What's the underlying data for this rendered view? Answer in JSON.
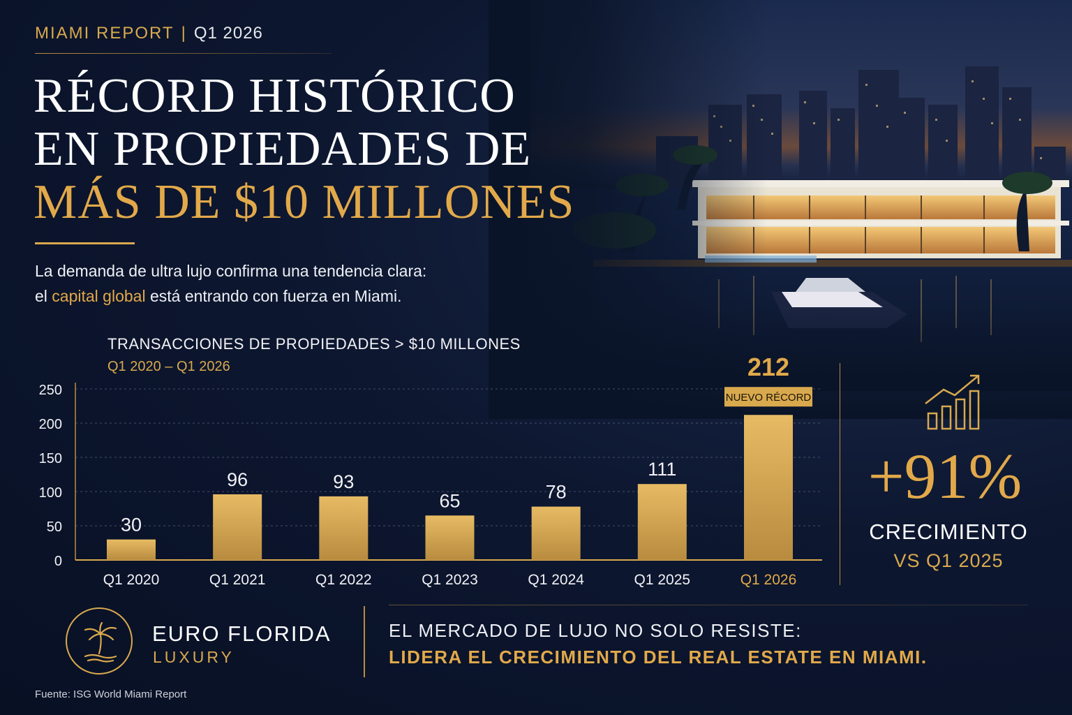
{
  "header": {
    "report_label": "MIAMI REPORT",
    "separator": "|",
    "quarter": "Q1 2026"
  },
  "headline": {
    "line1": "RÉCORD HISTÓRICO",
    "line2": "EN PROPIEDADES DE",
    "line3": "MÁS DE $10 MILLONES"
  },
  "intro": {
    "line1": "La demanda de ultra lujo confirma una tendencia clara:",
    "line2_pre": "el ",
    "line2_highlight": "capital global",
    "line2_post": " está entrando con fuerza en Miami."
  },
  "chart_data": {
    "type": "bar",
    "title": "TRANSACCIONES DE PROPIEDADES > $10 MILLONES",
    "subtitle": "Q1 2020 – Q1 2026",
    "categories": [
      "Q1 2020",
      "Q1 2021",
      "Q1 2022",
      "Q1 2023",
      "Q1 2024",
      "Q1 2025",
      "Q1 2026"
    ],
    "values": [
      30,
      96,
      93,
      65,
      78,
      111,
      212
    ],
    "ylim": [
      0,
      250
    ],
    "yticks": [
      0,
      50,
      100,
      150,
      200,
      250
    ],
    "grid": true,
    "highlight_index": 6,
    "highlight_badge": "NUEVO RÉCORD",
    "bar_color": "#d9a94e"
  },
  "growth": {
    "value": "+91%",
    "label": "CRECIMIENTO",
    "sublabel": "VS Q1 2025",
    "icon": "growth-chart-icon"
  },
  "brand": {
    "name": "EURO FLORIDA",
    "sub": "LUXURY",
    "icon": "palm-tree-icon"
  },
  "tagline": {
    "line1": "EL MERCADO DE LUJO NO SOLO RESISTE:",
    "line2": "LIDERA EL CRECIMIENTO DEL REAL ESTATE EN MIAMI."
  },
  "source": "Fuente: ISG World Miami Report",
  "colors": {
    "gold": "#d9a94e",
    "navy": "#0b1326",
    "white": "#ffffff"
  }
}
